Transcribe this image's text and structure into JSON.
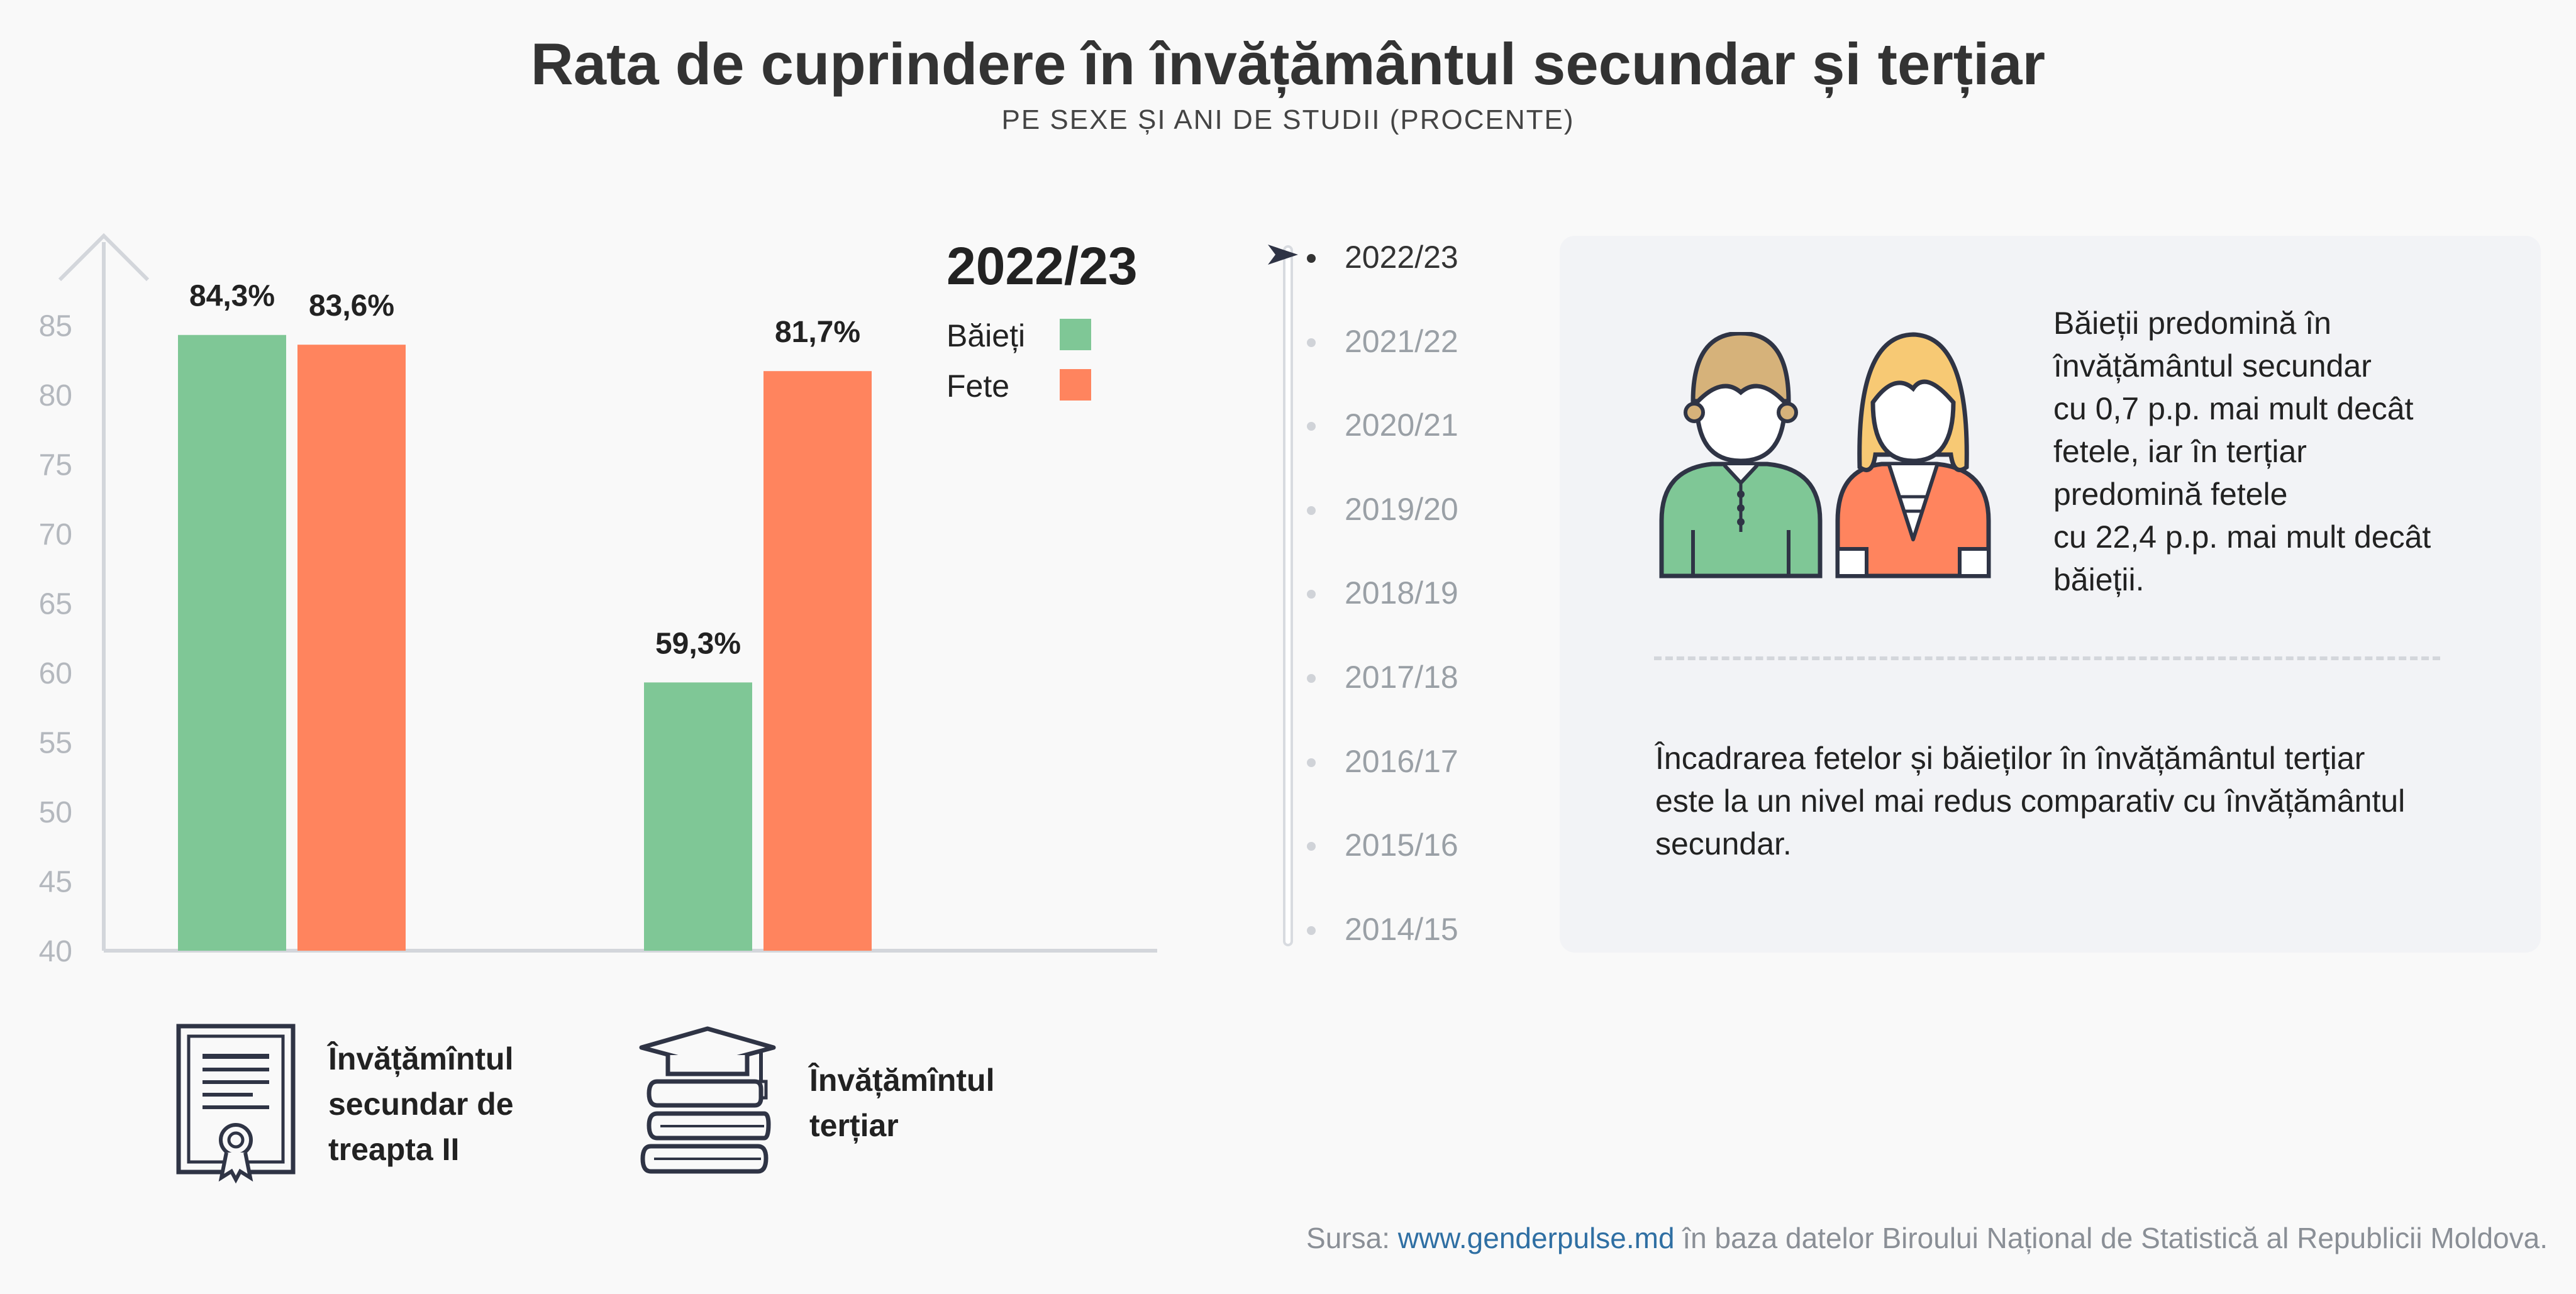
{
  "header": {
    "title": "Rata de cuprindere în învățământul secundar și terțiar",
    "subtitle": "PE SEXE ȘI ANI DE STUDII (PROCENTE)"
  },
  "legend": {
    "year": "2022/23",
    "items": [
      {
        "label": "Băieți",
        "color": "#7fc796"
      },
      {
        "label": "Fete",
        "color": "#ff845e"
      }
    ]
  },
  "chart_data": {
    "type": "bar",
    "categories": [
      "Învățămîntul secundar de treapta II",
      "Învățămîntul terțiar"
    ],
    "series": [
      {
        "name": "Băieți",
        "values": [
          84.3,
          59.3
        ],
        "labels": [
          "84,3%",
          "59,3%"
        ],
        "color": "#7fc796"
      },
      {
        "name": "Fete",
        "values": [
          83.6,
          81.7
        ],
        "labels": [
          "83,6%",
          "81,7%"
        ],
        "color": "#ff845e"
      }
    ],
    "yticks": [
      40,
      45,
      50,
      55,
      60,
      65,
      70,
      75,
      80,
      85
    ],
    "ylim": [
      40,
      87.5
    ],
    "grid": false,
    "legend_position": "top-right"
  },
  "categories_display": {
    "secondary": {
      "lines": [
        "Învățămîntul",
        "secundar de",
        "treapta II"
      ],
      "icon": "diploma-certificate-icon"
    },
    "tertiary": {
      "lines": [
        "Învățămîntul",
        "terțiar"
      ],
      "icon": "graduation-books-icon"
    }
  },
  "timeline": {
    "items": [
      "2022/23",
      "2021/22",
      "2020/21",
      "2019/20",
      "2018/19",
      "2017/18",
      "2016/17",
      "2015/16",
      "2014/15"
    ],
    "active": "2022/23",
    "pointer_icon": "navigation-arrow-icon"
  },
  "info": {
    "illustration_icon": "boy-girl-icon",
    "text1_lines": [
      "Băieții predomină în",
      "învățământul secundar",
      "cu 0,7 p.p. mai mult decât",
      "fetele, iar în terțiar",
      "predomină fetele",
      "cu 22,4 p.p. mai mult decât",
      "băieții."
    ],
    "text2_lines": [
      "Încadrarea fetelor și băieților în învățământul terțiar",
      "este la un nivel mai redus comparativ cu învățământul",
      "secundar."
    ]
  },
  "source": {
    "prefix": "Sursa: ",
    "link": "www.genderpulse.md",
    "suffix": " în baza datelor Biroului Național de Statistică al Republicii Moldova."
  }
}
